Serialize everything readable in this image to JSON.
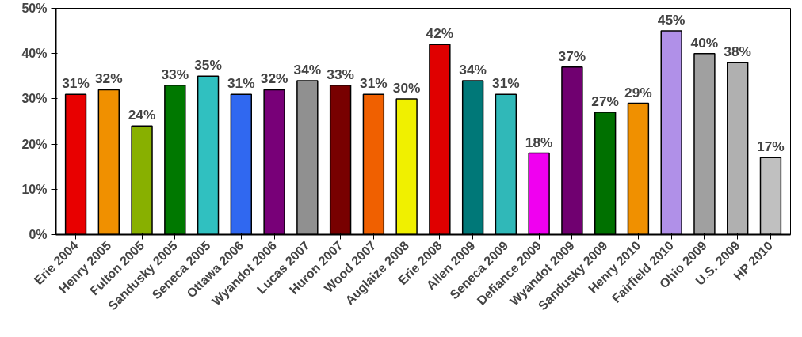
{
  "chart_data": {
    "type": "bar",
    "categories": [
      "Erie 2004",
      "Henry 2005",
      "Fulton 2005",
      "Sandusky 2005",
      "Seneca 2005",
      "Ottawa 2006",
      "Wyandot 2006",
      "Lucas 2007",
      "Huron 2007",
      "Wood 2007",
      "Auglaize 2008",
      "Erie 2008",
      "Allen 2009",
      "Seneca 2009",
      "Defiance 2009",
      "Wyandot 2009",
      "Sandusky 2009",
      "Henry 2010",
      "Fairfield 2010",
      "Ohio 2009",
      "U.S. 2009",
      "HP 2010"
    ],
    "values": [
      31,
      32,
      24,
      33,
      35,
      31,
      32,
      34,
      33,
      31,
      30,
      42,
      34,
      31,
      18,
      37,
      27,
      29,
      45,
      40,
      38,
      17
    ],
    "colors": [
      "#e80000",
      "#f09000",
      "#88b000",
      "#007800",
      "#30c0c0",
      "#3068f0",
      "#780078",
      "#909090",
      "#780000",
      "#f06000",
      "#f0f000",
      "#e00000",
      "#007878",
      "#30b8b8",
      "#f000f0",
      "#700070",
      "#007000",
      "#f09000",
      "#b090e8",
      "#a0a0a0",
      "#b0b0b0",
      "#c0c0c0"
    ],
    "ylim": [
      0,
      50
    ],
    "yticks": [
      {
        "value": 0,
        "label": "0%"
      },
      {
        "value": 10,
        "label": "10%"
      },
      {
        "value": 20,
        "label": "20%"
      },
      {
        "value": 30,
        "label": "30%"
      },
      {
        "value": 40,
        "label": "40%"
      },
      {
        "value": 50,
        "label": "50%"
      }
    ],
    "value_labels": [
      "31%",
      "32%",
      "24%",
      "33%",
      "35%",
      "31%",
      "32%",
      "34%",
      "33%",
      "31%",
      "30%",
      "42%",
      "34%",
      "31%",
      "18%",
      "37%",
      "27%",
      "29%",
      "45%",
      "40%",
      "38%",
      "17%"
    ],
    "grid": false
  }
}
